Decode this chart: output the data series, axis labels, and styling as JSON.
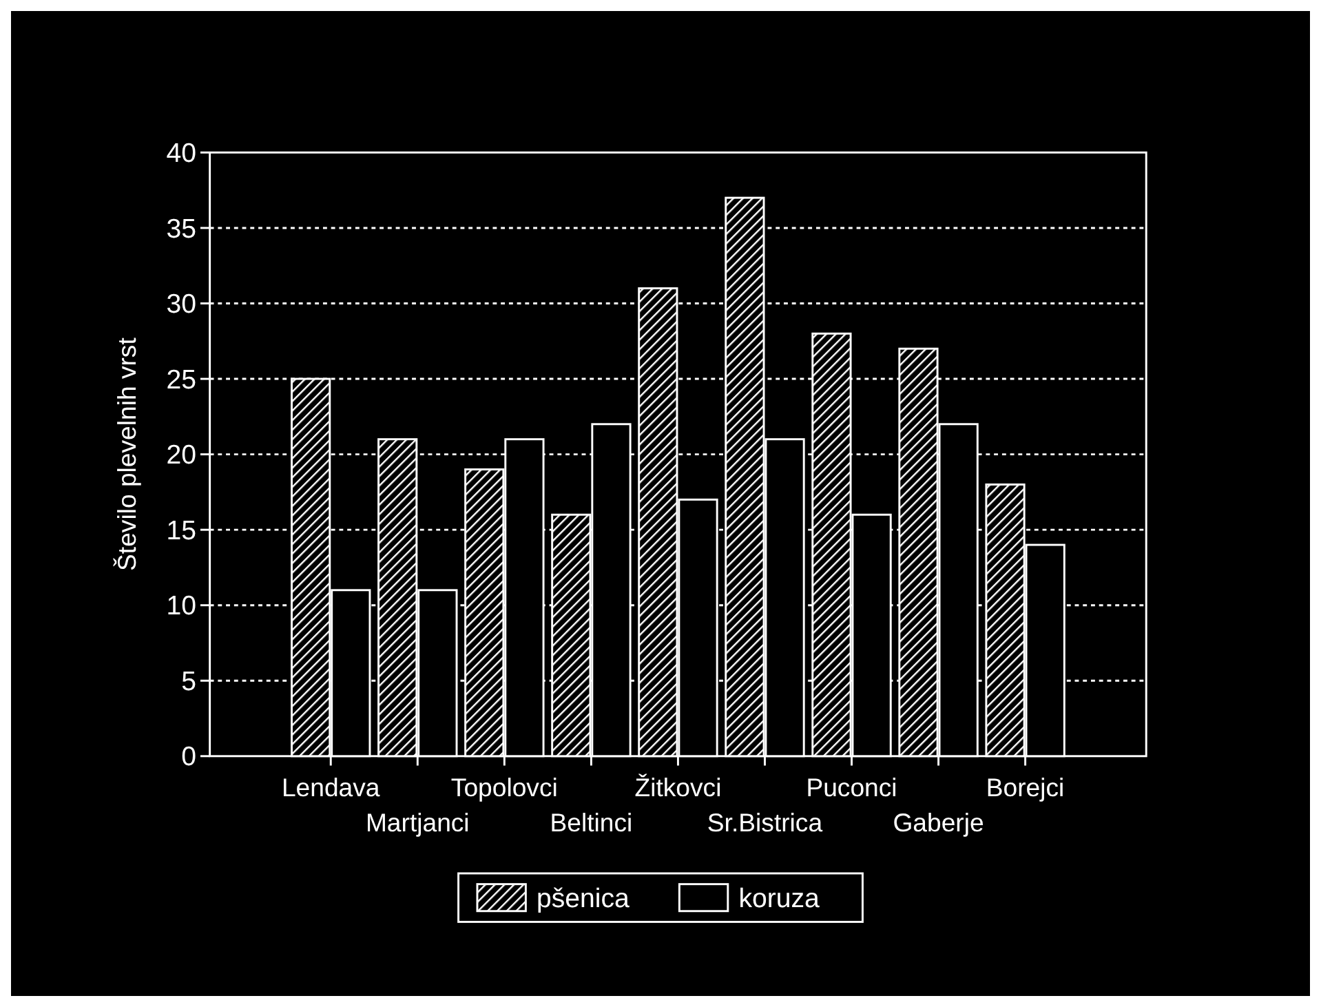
{
  "chart_data": {
    "type": "bar",
    "ylabel": "Število plevelnih vrst",
    "categories": [
      "Lendava",
      "Martjanci",
      "Topolovci",
      "Beltinci",
      "Žitkovci",
      "Sr.Bistrica",
      "Puconci",
      "Gaberje",
      "Borejci"
    ],
    "series": [
      {
        "name": "pšenica",
        "color": "#ffffff",
        "values": [
          25,
          21,
          19,
          16,
          31,
          37,
          28,
          27,
          18
        ]
      },
      {
        "name": "koruza",
        "color": "#000000",
        "values": [
          11,
          11,
          21,
          22,
          17,
          21,
          16,
          22,
          14
        ]
      }
    ],
    "ylim": [
      0,
      40
    ],
    "yticks": [
      0,
      5,
      10,
      15,
      20,
      25,
      30,
      35,
      40
    ],
    "grid": "y",
    "legend": "bottom"
  }
}
